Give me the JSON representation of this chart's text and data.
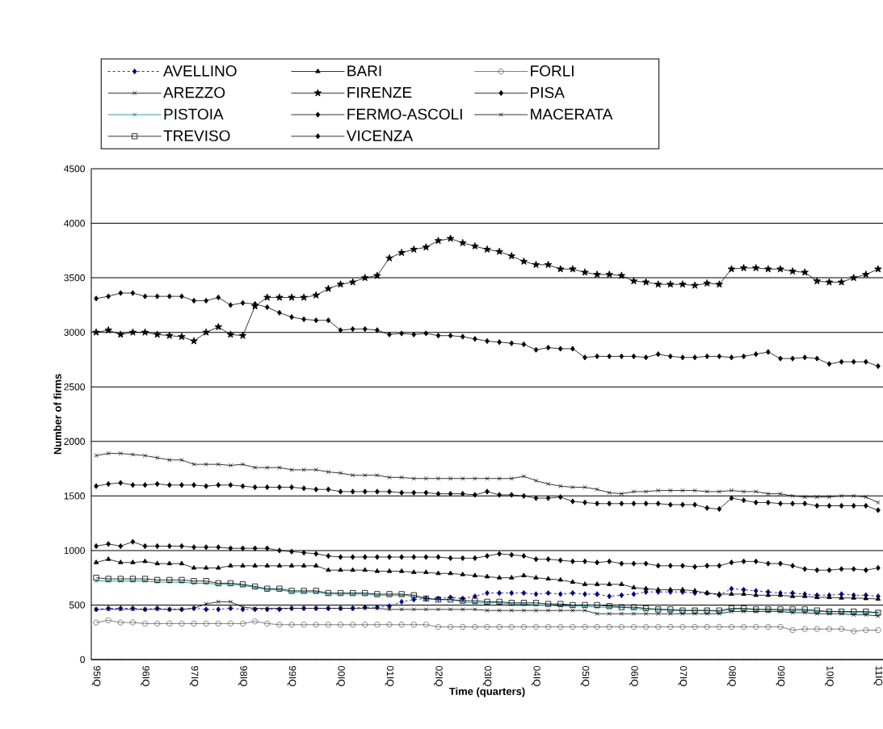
{
  "chart_data": {
    "type": "line",
    "xlabel": "Time (quarters)",
    "ylabel": "Number of firms",
    "categories": [
      "95IQ",
      null,
      null,
      null,
      "96IQ",
      null,
      null,
      null,
      "97IQ",
      null,
      null,
      null,
      "98IQ",
      null,
      null,
      null,
      "99IQ",
      null,
      null,
      null,
      "00IQ",
      null,
      null,
      null,
      "01IQ",
      null,
      null,
      null,
      "02IQ",
      null,
      null,
      null,
      "03IQ",
      null,
      null,
      null,
      "04IQ",
      null,
      null,
      null,
      "05IQ",
      null,
      null,
      null,
      "06IQ",
      null,
      null,
      null,
      "07IQ",
      null,
      null,
      null,
      "08IQ",
      null,
      null,
      null,
      "09IQ",
      null,
      null,
      null,
      "10IQ",
      null,
      null,
      null,
      "11IQ"
    ],
    "ylim": [
      0,
      4500
    ],
    "yticks": [
      0,
      500,
      1000,
      1500,
      2000,
      2500,
      3000,
      3500,
      4000,
      4500
    ],
    "grid": "y",
    "legend": "top",
    "series": [
      {
        "name": "AVELLINO",
        "color": "#000080",
        "marker": "diamond",
        "line_style": "dashed",
        "values": [
          460,
          470,
          470,
          470,
          460,
          470,
          460,
          460,
          470,
          460,
          460,
          470,
          460,
          460,
          460,
          460,
          470,
          470,
          470,
          470,
          470,
          470,
          480,
          480,
          490,
          530,
          550,
          560,
          560,
          570,
          560,
          580,
          610,
          610,
          610,
          610,
          600,
          610,
          600,
          610,
          600,
          600,
          580,
          590,
          600,
          620,
          620,
          620,
          620,
          610,
          610,
          590,
          650,
          640,
          630,
          620,
          610,
          610,
          600,
          590,
          590,
          600,
          590,
          590,
          580
        ]
      },
      {
        "name": "BARI",
        "color": "#000000",
        "marker": "triangle",
        "line_style": "solid",
        "values": [
          890,
          920,
          890,
          890,
          900,
          880,
          880,
          880,
          840,
          840,
          840,
          860,
          860,
          860,
          860,
          860,
          860,
          860,
          860,
          820,
          820,
          820,
          820,
          810,
          810,
          810,
          800,
          800,
          790,
          790,
          780,
          770,
          760,
          750,
          750,
          770,
          750,
          740,
          730,
          710,
          690,
          690,
          690,
          690,
          660,
          650,
          640,
          640,
          640,
          630,
          610,
          600,
          600,
          600,
          590,
          590,
          590,
          580,
          580,
          570,
          570,
          565,
          565,
          560,
          555
        ]
      },
      {
        "name": "FORLI",
        "color": "#606060",
        "marker": "circle",
        "line_style": "solid",
        "values": [
          340,
          360,
          340,
          340,
          330,
          330,
          330,
          330,
          330,
          330,
          330,
          330,
          330,
          350,
          330,
          320,
          320,
          320,
          320,
          320,
          320,
          320,
          320,
          320,
          320,
          320,
          320,
          320,
          300,
          300,
          300,
          300,
          300,
          300,
          300,
          300,
          300,
          300,
          300,
          300,
          300,
          300,
          300,
          300,
          300,
          300,
          300,
          300,
          300,
          300,
          300,
          300,
          300,
          300,
          300,
          300,
          300,
          270,
          280,
          280,
          280,
          280,
          260,
          270,
          270
        ]
      },
      {
        "name": "AREZZO",
        "color": "#000000",
        "marker": "cross",
        "line_style": "solid",
        "values": [
          460,
          460,
          460,
          460,
          460,
          460,
          460,
          460,
          470,
          510,
          530,
          530,
          480,
          470,
          470,
          470,
          470,
          470,
          470,
          470,
          470,
          470,
          470,
          470,
          460,
          460,
          460,
          460,
          460,
          460,
          460,
          460,
          450,
          450,
          450,
          450,
          450,
          450,
          450,
          450,
          450,
          420,
          420,
          420,
          420,
          420,
          420,
          420,
          420,
          420,
          420,
          420,
          440,
          440,
          440,
          440,
          440,
          430,
          430,
          420,
          420,
          420,
          410,
          410,
          400
        ]
      },
      {
        "name": "FIRENZE",
        "color": "#000000",
        "marker": "star",
        "line_style": "solid",
        "values": [
          3000,
          3020,
          2980,
          3000,
          3000,
          2980,
          2970,
          2960,
          2920,
          3000,
          3050,
          2980,
          2970,
          3240,
          3320,
          3320,
          3320,
          3320,
          3340,
          3400,
          3440,
          3460,
          3500,
          3520,
          3680,
          3730,
          3760,
          3780,
          3840,
          3860,
          3820,
          3790,
          3760,
          3740,
          3700,
          3650,
          3620,
          3620,
          3580,
          3580,
          3550,
          3530,
          3530,
          3520,
          3470,
          3460,
          3440,
          3440,
          3440,
          3430,
          3450,
          3440,
          3580,
          3590,
          3590,
          3580,
          3580,
          3560,
          3550,
          3470,
          3460,
          3460,
          3500,
          3530,
          3580
        ]
      },
      {
        "name": "PISA",
        "color": "#000000",
        "marker": "diamond",
        "line_style": "solid",
        "values": [
          1590,
          1610,
          1620,
          1600,
          1600,
          1610,
          1600,
          1600,
          1600,
          1590,
          1600,
          1600,
          1590,
          1580,
          1580,
          1580,
          1580,
          1570,
          1560,
          1560,
          1540,
          1540,
          1540,
          1540,
          1540,
          1530,
          1530,
          1530,
          1520,
          1520,
          1520,
          1510,
          1540,
          1510,
          1510,
          1500,
          1480,
          1480,
          1490,
          1450,
          1440,
          1430,
          1430,
          1430,
          1430,
          1430,
          1430,
          1420,
          1420,
          1420,
          1390,
          1380,
          1480,
          1460,
          1440,
          1440,
          1430,
          1430,
          1430,
          1410,
          1410,
          1410,
          1410,
          1410,
          1370
        ]
      },
      {
        "name": "PISTOIA",
        "color": "#008080",
        "marker": "cross",
        "line_style": "solid",
        "values": [
          720,
          720,
          720,
          720,
          720,
          710,
          710,
          710,
          700,
          700,
          690,
          690,
          680,
          660,
          640,
          640,
          620,
          620,
          620,
          600,
          600,
          600,
          600,
          590,
          590,
          590,
          580,
          560,
          550,
          550,
          530,
          520,
          520,
          520,
          510,
          510,
          500,
          500,
          490,
          490,
          490,
          480,
          480,
          480,
          470,
          460,
          460,
          450,
          450,
          450,
          450,
          440,
          460,
          460,
          460,
          460,
          450,
          450,
          450,
          440,
          440,
          440,
          430,
          430,
          430
        ]
      },
      {
        "name": "FERMO-ASCOLI",
        "color": "#000000",
        "marker": "diamond",
        "line_style": "solid",
        "values": [
          3310,
          3330,
          3360,
          3360,
          3330,
          3330,
          3330,
          3330,
          3290,
          3290,
          3320,
          3250,
          3270,
          3260,
          3230,
          3180,
          3140,
          3120,
          3110,
          3110,
          3020,
          3030,
          3030,
          3020,
          2980,
          2990,
          2980,
          2990,
          2970,
          2970,
          2960,
          2940,
          2920,
          2910,
          2900,
          2890,
          2840,
          2860,
          2850,
          2850,
          2770,
          2780,
          2780,
          2780,
          2780,
          2770,
          2800,
          2780,
          2770,
          2770,
          2780,
          2780,
          2770,
          2780,
          2800,
          2820,
          2760,
          2760,
          2770,
          2760,
          2710,
          2730,
          2730,
          2730,
          2690
        ]
      },
      {
        "name": "MACERATA",
        "color": "#000000",
        "marker": "cross",
        "line_style": "solid",
        "values": [
          1870,
          1890,
          1890,
          1880,
          1870,
          1850,
          1830,
          1830,
          1790,
          1790,
          1790,
          1780,
          1790,
          1760,
          1760,
          1760,
          1740,
          1740,
          1740,
          1720,
          1710,
          1690,
          1690,
          1690,
          1670,
          1670,
          1660,
          1660,
          1660,
          1660,
          1660,
          1660,
          1660,
          1660,
          1660,
          1680,
          1640,
          1610,
          1590,
          1580,
          1580,
          1560,
          1530,
          1520,
          1540,
          1540,
          1550,
          1550,
          1550,
          1550,
          1540,
          1540,
          1550,
          1540,
          1540,
          1520,
          1520,
          1500,
          1490,
          1490,
          1490,
          1500,
          1500,
          1490,
          1440
        ]
      },
      {
        "name": "TREVISO",
        "color": "#000000",
        "marker": "square",
        "line_style": "solid",
        "values": [
          750,
          740,
          740,
          740,
          740,
          730,
          730,
          730,
          720,
          720,
          700,
          700,
          690,
          670,
          650,
          650,
          630,
          630,
          630,
          610,
          610,
          610,
          610,
          600,
          600,
          600,
          590,
          560,
          550,
          550,
          540,
          540,
          530,
          530,
          520,
          520,
          520,
          510,
          510,
          500,
          500,
          500,
          490,
          480,
          480,
          470,
          460,
          460,
          450,
          450,
          450,
          450,
          470,
          470,
          460,
          460,
          460,
          460,
          460,
          450,
          440,
          440,
          440,
          440,
          430
        ]
      },
      {
        "name": "VICENZA",
        "color": "#000000",
        "marker": "diamond",
        "line_style": "solid",
        "values": [
          1040,
          1060,
          1040,
          1080,
          1040,
          1040,
          1040,
          1040,
          1030,
          1030,
          1030,
          1020,
          1020,
          1020,
          1020,
          1000,
          990,
          980,
          970,
          950,
          940,
          940,
          940,
          940,
          940,
          940,
          940,
          940,
          940,
          930,
          930,
          930,
          950,
          970,
          960,
          950,
          920,
          920,
          910,
          900,
          900,
          890,
          900,
          880,
          880,
          880,
          860,
          860,
          860,
          850,
          860,
          860,
          890,
          900,
          900,
          880,
          880,
          860,
          830,
          820,
          820,
          830,
          830,
          820,
          840
        ]
      }
    ]
  }
}
